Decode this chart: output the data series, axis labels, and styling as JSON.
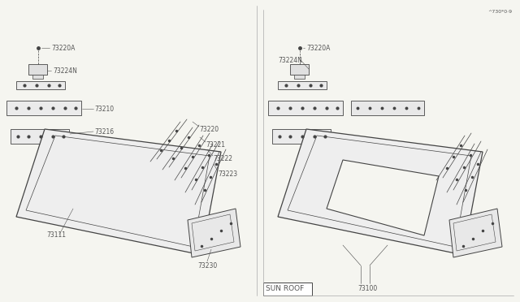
{
  "bg_color": "#f5f5f0",
  "line_color": "#444444",
  "label_color": "#555555",
  "divider_color": "#999999",
  "sun_roof_label": "SUN ROOF",
  "part_73100": "73100",
  "part_73111": "73111",
  "part_73230": "73230",
  "part_73223": "73223",
  "part_73222": "73222",
  "part_73221": "73221",
  "part_73220": "73220",
  "part_73216": "73216",
  "part_73210": "73210",
  "part_73224N": "73224N",
  "part_73220A": "73220A",
  "watermark": "^730*0·9",
  "label_fs": 5.5,
  "small_fs": 4.5
}
